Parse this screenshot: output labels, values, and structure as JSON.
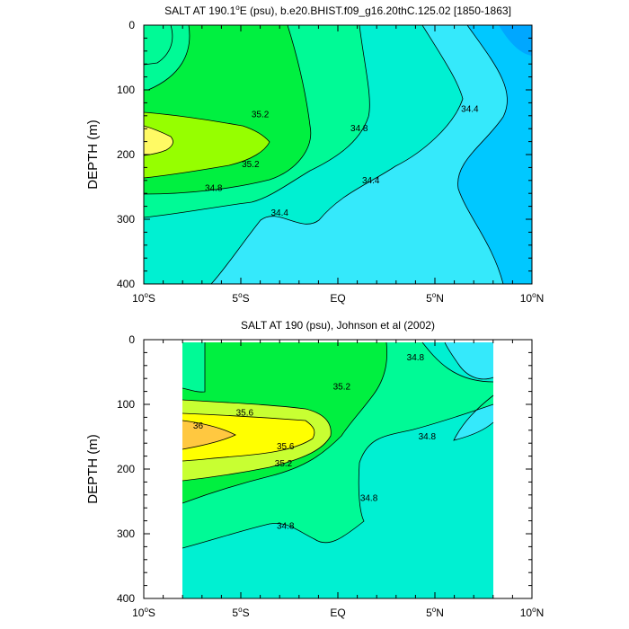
{
  "chart_data": [
    {
      "type": "contour",
      "title": "SALT AT 190.1°E (psu), b.e20.BHIST.f09_g16.20thC.125.02 [1850-1863]",
      "title_parts": {
        "pre": "SALT AT 190.1",
        "sup": "o",
        "post": "E (psu), b.e20.BHIST.f09_g16.20thC.125.02 [1850-1863]"
      },
      "ylabel": "DEPTH (m)",
      "xlabel": "",
      "xlim": [
        -10,
        10
      ],
      "ylim": [
        400,
        0
      ],
      "x_tick_labels": [
        {
          "value": -10,
          "num": "10",
          "sup": "o",
          "suf": "S"
        },
        {
          "value": -5,
          "num": "5",
          "sup": "o",
          "suf": "S"
        },
        {
          "value": 0,
          "num": "EQ",
          "sup": "",
          "suf": ""
        },
        {
          "value": 5,
          "num": "5",
          "sup": "o",
          "suf": "N"
        },
        {
          "value": 10,
          "num": "10",
          "sup": "o",
          "suf": "N"
        }
      ],
      "y_tick_labels": [
        "0",
        "100",
        "200",
        "300",
        "400"
      ],
      "y_ticks": [
        0,
        100,
        200,
        300,
        400
      ],
      "contour_labels": [
        {
          "text": "35.2",
          "x": -4,
          "y": 138
        },
        {
          "text": "35.2",
          "x": -4.5,
          "y": 215
        },
        {
          "text": "34.8",
          "x": -6.4,
          "y": 252
        },
        {
          "text": "34.4",
          "x": -3.0,
          "y": 290
        },
        {
          "text": "34.8",
          "x": 1.1,
          "y": 160
        },
        {
          "text": "34.4",
          "x": 1.7,
          "y": 240
        },
        {
          "text": "34.4",
          "x": 6.8,
          "y": 130
        }
      ],
      "data_extent_x": [
        -10,
        10
      ],
      "colors": {
        "gt_35_6": "#fffa64",
        "35_2_to_35_6": "#96ff00",
        "34_8_to_35_2": "#00f040",
        "34_6_to_34_8": "#00fa96",
        "34_4_to_34_6": "#00f0d2",
        "34_2_to_34_4": "#35e9fb",
        "lt_34_2": "#00c8ff",
        "lowest": "#00a7ff"
      }
    },
    {
      "type": "contour",
      "title": "SALT AT 190 (psu), Johnson et al (2002)",
      "title_parts": {
        "pre": "SALT AT 190 (psu), Johnson et al (2002)",
        "sup": "",
        "post": ""
      },
      "ylabel": "DEPTH (m)",
      "xlabel": "",
      "xlim": [
        -10,
        10
      ],
      "ylim": [
        400,
        0
      ],
      "x_tick_labels": [
        {
          "value": -10,
          "num": "10",
          "sup": "o",
          "suf": "S"
        },
        {
          "value": -5,
          "num": "5",
          "sup": "o",
          "suf": "S"
        },
        {
          "value": 0,
          "num": "EQ",
          "sup": "",
          "suf": ""
        },
        {
          "value": 5,
          "num": "5",
          "sup": "o",
          "suf": "N"
        },
        {
          "value": 10,
          "num": "10",
          "sup": "o",
          "suf": "N"
        }
      ],
      "y_tick_labels": [
        "0",
        "100",
        "200",
        "300",
        "400"
      ],
      "y_ticks": [
        0,
        100,
        200,
        300,
        400
      ],
      "contour_labels": [
        {
          "text": "36",
          "x": -7.2,
          "y": 133
        },
        {
          "text": "35.6",
          "x": -4.8,
          "y": 113
        },
        {
          "text": "35.6",
          "x": -2.7,
          "y": 165
        },
        {
          "text": "35.2",
          "x": -2.8,
          "y": 192
        },
        {
          "text": "35.2",
          "x": 0.2,
          "y": 73
        },
        {
          "text": "34.8",
          "x": 4.0,
          "y": 28
        },
        {
          "text": "34.8",
          "x": 4.6,
          "y": 150
        },
        {
          "text": "34.8",
          "x": 1.6,
          "y": 245
        },
        {
          "text": "34.8",
          "x": -2.7,
          "y": 288
        }
      ],
      "data_extent_x": [
        -8,
        8
      ],
      "colors": {
        "gt_36": "#ffc840",
        "35_6_to_36": "#ffff00",
        "35_4_to_35_6": "#c8ff32",
        "35_0_to_35_4": "#00f040",
        "34_8_to_35_0": "#00fa96",
        "34_6_to_34_8": "#00f0d2",
        "lt_34_6": "#35e9fb"
      }
    }
  ]
}
